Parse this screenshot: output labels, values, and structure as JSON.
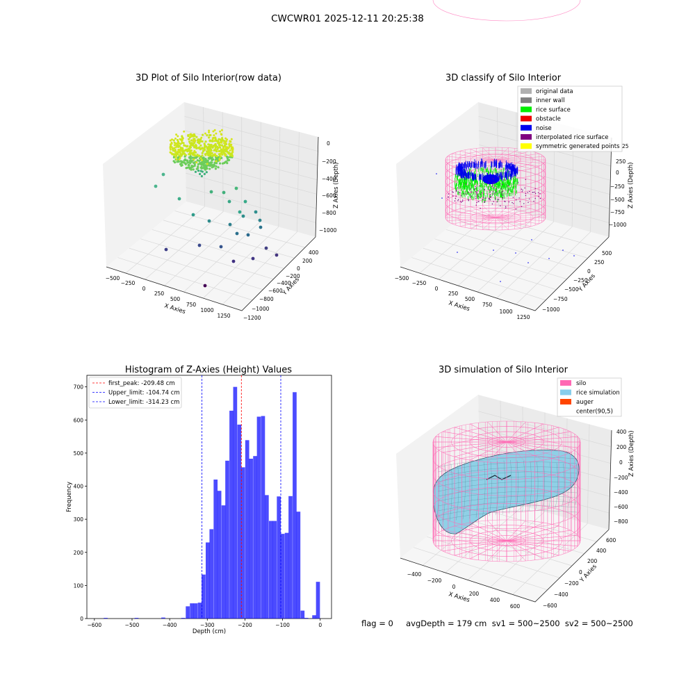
{
  "figure": {
    "suptitle": "CWCWR01 2025-12-11 20:25:38",
    "bottom_text": "flag = 0     avgDepth = 179 cm  sv1 = 500~2500  sv2 = 500~2500"
  },
  "panel1": {
    "title": "3D Plot of Silo Interior(row data)",
    "xlabel": "X Axies",
    "ylabel": "Y Axies",
    "zlabel": "Z Axies (Depth)",
    "xticks": [
      "−500",
      "−250",
      "0",
      "250",
      "500",
      "750",
      "1000",
      "1250"
    ],
    "yticks": [
      "400",
      "200",
      "0",
      "−200",
      "−400",
      "−600",
      "−800",
      "−1000",
      "−1200"
    ],
    "zticks": [
      "0",
      "−200",
      "−400",
      "−600",
      "−800",
      "−1000"
    ]
  },
  "panel2": {
    "title": "3D classify of Silo Interior",
    "xlabel": "X Axies",
    "ylabel": "Y Axies",
    "zlabel": "Z Axies (Depth)",
    "xticks": [
      "−500",
      "−250",
      "0",
      "250",
      "500",
      "750",
      "1000",
      "1250"
    ],
    "yticks": [
      "500",
      "250",
      "0",
      "−250",
      "−500",
      "−750",
      "−1000"
    ],
    "zticks": [
      "250",
      "0",
      "−250",
      "−500",
      "−750",
      "−1000"
    ],
    "ztop": "25",
    "legend": [
      {
        "label": "original data",
        "color": "#b0b0b0"
      },
      {
        "label": "inner wall",
        "color": "#808080"
      },
      {
        "label": "rice surface",
        "color": "#00ee00"
      },
      {
        "label": "obstacle",
        "color": "#ee0000"
      },
      {
        "label": "noise",
        "color": "#0000ee"
      },
      {
        "label": "interpolated rice surface",
        "color": "#800080"
      },
      {
        "label": "symmetric generated points",
        "color": "#ffff00"
      }
    ]
  },
  "panel4": {
    "title": "3D simulation of Silo Interior",
    "xlabel": "X Axies",
    "ylabel": "Y Axies",
    "zlabel": "Z Axies (Depth)",
    "xticks": [
      "−400",
      "−200",
      "0",
      "200",
      "400",
      "600"
    ],
    "yticks": [
      "600",
      "400",
      "200",
      "0",
      "−200",
      "−400",
      "−600"
    ],
    "zticks": [
      "400",
      "200",
      "0",
      "−200",
      "−400",
      "−600",
      "−800"
    ],
    "legend": [
      {
        "label": "silo",
        "color": "#ff69b4"
      },
      {
        "label": "rice simulation",
        "color": "#87ceeb"
      },
      {
        "label": "auger",
        "color": "#ff4500"
      },
      {
        "label": "center(90,5)",
        "color": ""
      }
    ]
  },
  "chart_data": [
    {
      "type": "histogram",
      "title": "Histogram of Z-Axies (Height) Values",
      "xlabel": "Depth (cm)",
      "ylabel": "Frequency",
      "xlim": [
        -620,
        30
      ],
      "ylim": [
        0,
        735
      ],
      "xticks": [
        -600,
        -500,
        -400,
        -300,
        -200,
        -100,
        0
      ],
      "yticks": [
        0,
        100,
        200,
        300,
        400,
        500,
        600,
        700
      ],
      "grid": false,
      "legend_position": "top-left",
      "bar_color": "#0000ff",
      "bin_width": 10.5,
      "bins": [
        {
          "x": -570,
          "count": 2
        },
        {
          "x": -488,
          "count": 2
        },
        {
          "x": -417,
          "count": 3
        },
        {
          "x": -364,
          "count": 2
        },
        {
          "x": -352,
          "count": 37
        },
        {
          "x": -341,
          "count": 46
        },
        {
          "x": -331,
          "count": 46
        },
        {
          "x": -320,
          "count": 48
        },
        {
          "x": -310,
          "count": 133
        },
        {
          "x": -299,
          "count": 230
        },
        {
          "x": -289,
          "count": 270
        },
        {
          "x": -278,
          "count": 420
        },
        {
          "x": -268,
          "count": 386
        },
        {
          "x": -257,
          "count": 342
        },
        {
          "x": -247,
          "count": 477
        },
        {
          "x": -236,
          "count": 628
        },
        {
          "x": -226,
          "count": 700
        },
        {
          "x": -215,
          "count": 586
        },
        {
          "x": -205,
          "count": 457
        },
        {
          "x": -194,
          "count": 539
        },
        {
          "x": -184,
          "count": 483
        },
        {
          "x": -173,
          "count": 491
        },
        {
          "x": -163,
          "count": 610
        },
        {
          "x": -152,
          "count": 612
        },
        {
          "x": -142,
          "count": 373
        },
        {
          "x": -131,
          "count": 295
        },
        {
          "x": -121,
          "count": 295
        },
        {
          "x": -110,
          "count": 369
        },
        {
          "x": -100,
          "count": 256
        },
        {
          "x": -89,
          "count": 259
        },
        {
          "x": -79,
          "count": 370
        },
        {
          "x": -68,
          "count": 684
        },
        {
          "x": -58,
          "count": 323
        },
        {
          "x": -47,
          "count": 24
        },
        {
          "x": -37,
          "count": 2
        },
        {
          "x": -16,
          "count": 10
        },
        {
          "x": -6,
          "count": 111
        }
      ],
      "reference_lines": [
        {
          "label": "first_peak: -209.48 cm",
          "x": -209.48,
          "color": "#ff0000"
        },
        {
          "label": "Upper_limit: -104.74 cm",
          "x": -104.74,
          "color": "#0000ff"
        },
        {
          "label": "Lower_limit: -314.23 cm",
          "x": -314.23,
          "color": "#0000ff"
        }
      ]
    }
  ]
}
